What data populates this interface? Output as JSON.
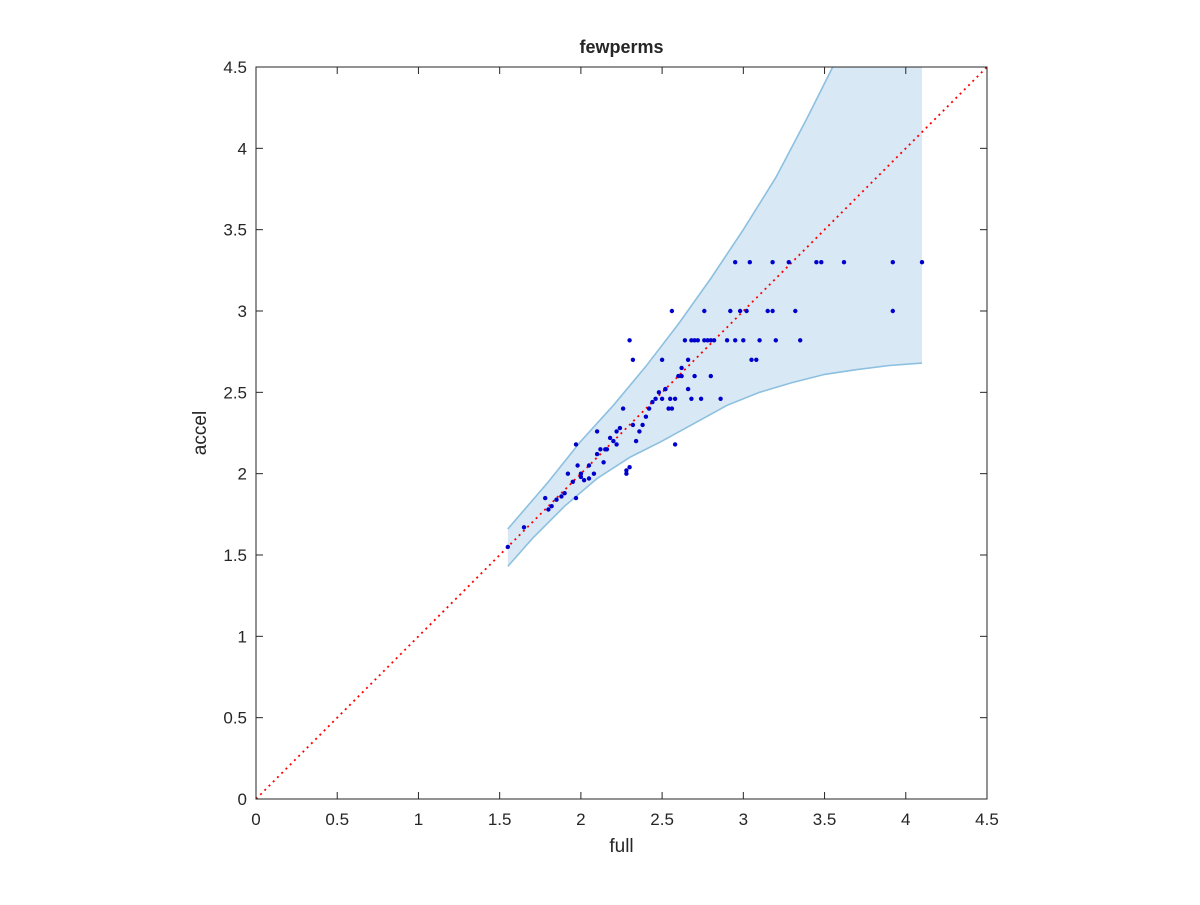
{
  "chart_data": {
    "type": "scatter",
    "title": "fewperms",
    "xlabel": "full",
    "ylabel": "accel",
    "xlim": [
      0,
      4.5
    ],
    "ylim": [
      0,
      4.5
    ],
    "xticks": [
      "0",
      "0.5",
      "1",
      "1.5",
      "2",
      "2.5",
      "3",
      "3.5",
      "4",
      "4.5"
    ],
    "yticks": [
      "0",
      "0.5",
      "1",
      "1.5",
      "2",
      "2.5",
      "3",
      "3.5",
      "4",
      "4.5"
    ],
    "grid": false,
    "box": true,
    "reference_line": {
      "x": [
        0,
        4.5
      ],
      "y": [
        0,
        4.5
      ],
      "color": "#ff0000",
      "style": "dotted"
    },
    "band": {
      "fill_color": "#d8e8f4",
      "edge_color": "#8cc0e0",
      "upper": [
        [
          1.55,
          1.66
        ],
        [
          1.8,
          1.95
        ],
        [
          2.0,
          2.2
        ],
        [
          2.2,
          2.42
        ],
        [
          2.4,
          2.66
        ],
        [
          2.6,
          2.92
        ],
        [
          2.8,
          3.2
        ],
        [
          3.0,
          3.5
        ],
        [
          3.2,
          3.82
        ],
        [
          3.4,
          4.2
        ],
        [
          3.55,
          4.5
        ],
        [
          4.1,
          4.5
        ]
      ],
      "lower": [
        [
          1.55,
          1.43
        ],
        [
          1.7,
          1.6
        ],
        [
          1.9,
          1.8
        ],
        [
          2.1,
          1.97
        ],
        [
          2.3,
          2.1
        ],
        [
          2.5,
          2.2
        ],
        [
          2.7,
          2.31
        ],
        [
          2.9,
          2.42
        ],
        [
          3.1,
          2.5
        ],
        [
          3.3,
          2.56
        ],
        [
          3.5,
          2.61
        ],
        [
          3.7,
          2.64
        ],
        [
          3.9,
          2.665
        ],
        [
          4.1,
          2.68
        ]
      ]
    },
    "points_color": "#0000cc",
    "x": [
      1.55,
      1.65,
      1.78,
      1.8,
      1.82,
      1.85,
      1.88,
      1.9,
      1.92,
      1.95,
      1.97,
      1.98,
      2.0,
      2.02,
      2.05,
      2.05,
      2.08,
      2.1,
      2.1,
      2.12,
      2.14,
      2.16,
      2.18,
      2.2,
      2.22,
      2.24,
      2.26,
      2.28,
      2.28,
      2.3,
      2.32,
      2.34,
      2.36,
      2.38,
      2.4,
      2.42,
      2.44,
      2.46,
      2.48,
      2.5,
      2.5,
      2.52,
      2.54,
      2.55,
      2.56,
      2.58,
      2.6,
      2.62,
      2.64,
      2.66,
      2.68,
      2.7,
      2.72,
      2.74,
      2.76,
      2.78,
      2.8,
      2.82,
      2.86,
      2.9,
      2.92,
      2.95,
      2.98,
      3.0,
      3.02,
      3.05,
      3.08,
      3.1,
      3.15,
      3.18,
      3.2,
      3.28,
      3.32,
      3.35,
      3.45,
      3.48,
      3.62,
      3.92,
      3.92,
      4.1,
      2.52,
      2.56,
      2.7,
      2.62,
      2.66,
      2.68,
      2.76,
      2.8,
      2.3,
      1.97,
      2.32,
      2.58,
      2.95,
      3.04,
      3.18,
      2.0,
      2.22,
      2.15
    ],
    "y": [
      1.55,
      1.67,
      1.85,
      1.78,
      1.8,
      1.84,
      1.86,
      1.88,
      2.0,
      1.95,
      1.85,
      2.05,
      2.0,
      1.96,
      2.05,
      1.97,
      2.0,
      2.12,
      2.26,
      2.15,
      2.07,
      2.15,
      2.22,
      2.2,
      2.18,
      2.28,
      2.4,
      2.0,
      2.02,
      2.04,
      2.3,
      2.2,
      2.26,
      2.3,
      2.35,
      2.4,
      2.44,
      2.46,
      2.5,
      2.46,
      2.7,
      2.52,
      2.4,
      2.46,
      2.4,
      2.46,
      2.6,
      2.6,
      2.82,
      2.52,
      2.46,
      2.82,
      2.82,
      2.46,
      2.82,
      2.82,
      2.6,
      2.82,
      2.46,
      2.82,
      3.0,
      2.82,
      3.0,
      2.82,
      3.0,
      2.7,
      2.7,
      2.82,
      3.0,
      3.0,
      2.82,
      3.3,
      3.0,
      2.82,
      3.3,
      3.3,
      3.3,
      3.3,
      3.0,
      3.3,
      2.52,
      3.0,
      2.6,
      2.65,
      2.7,
      2.82,
      3.0,
      2.82,
      2.82,
      2.18,
      2.7,
      2.18,
      3.3,
      3.3,
      3.3,
      1.98,
      2.26,
      2.15
    ]
  }
}
